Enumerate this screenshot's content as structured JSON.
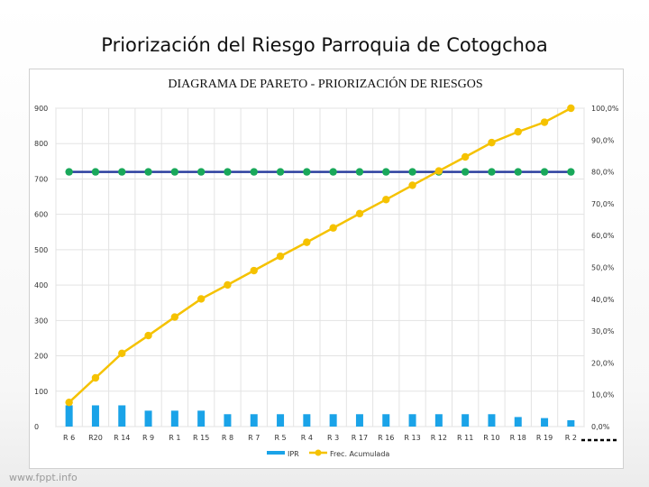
{
  "slide": {
    "title": "Priorización del Riesgo Parroquia de Cotogchoa",
    "watermark": "www.fppt.info"
  },
  "chart_data": {
    "type": "bar",
    "title": "DIAGRAMA DE PARETO - PRIORIZACIÓN DE RIESGOS",
    "categories": [
      "R 6",
      "R20",
      "R 14",
      "R 9",
      "R 1",
      "R 15",
      "R 8",
      "R 7",
      "R 5",
      "R 4",
      "R 3",
      "R 17",
      "R 16",
      "R 13",
      "R 12",
      "R 11",
      "R 10",
      "R 18",
      "R 19",
      "R 2"
    ],
    "ylim": [
      0,
      900
    ],
    "yticks": [
      0,
      100,
      200,
      300,
      400,
      500,
      600,
      700,
      800,
      900
    ],
    "y2lim": [
      0,
      100
    ],
    "y2ticks": [
      "0,0%",
      "10,0%",
      "20,0%",
      "30,0%",
      "40,0%",
      "50,0%",
      "60,0%",
      "70,0%",
      "80,0%",
      "90,0%",
      "100,0%"
    ],
    "grid": true,
    "series": [
      {
        "name": "IPR",
        "kind": "bar",
        "axis": "left",
        "color": "#1aa3e8",
        "values": [
          60,
          60,
          60,
          45,
          45,
          45,
          35,
          35,
          35,
          35,
          35,
          35,
          35,
          35,
          35,
          35,
          35,
          27,
          24,
          18
        ]
      },
      {
        "name": "Frec. Acumulada",
        "kind": "line",
        "axis": "right",
        "color": "#f5c200",
        "values": [
          7.6,
          15.3,
          23.0,
          28.6,
          34.4,
          40.1,
          44.5,
          49.0,
          53.5,
          57.9,
          62.4,
          66.9,
          71.3,
          75.8,
          80.3,
          84.7,
          89.2,
          92.6,
          95.6,
          100.0
        ]
      },
      {
        "kind": "line",
        "axis": "right",
        "color": "#2b3f9e",
        "marker_color": "#19a85a",
        "values": [
          80,
          80,
          80,
          80,
          80,
          80,
          80,
          80,
          80,
          80,
          80,
          80,
          80,
          80,
          80,
          80,
          80,
          80,
          80,
          80
        ]
      }
    ],
    "legend": {
      "position": "bottom",
      "extra_line_color": "#000000"
    }
  }
}
